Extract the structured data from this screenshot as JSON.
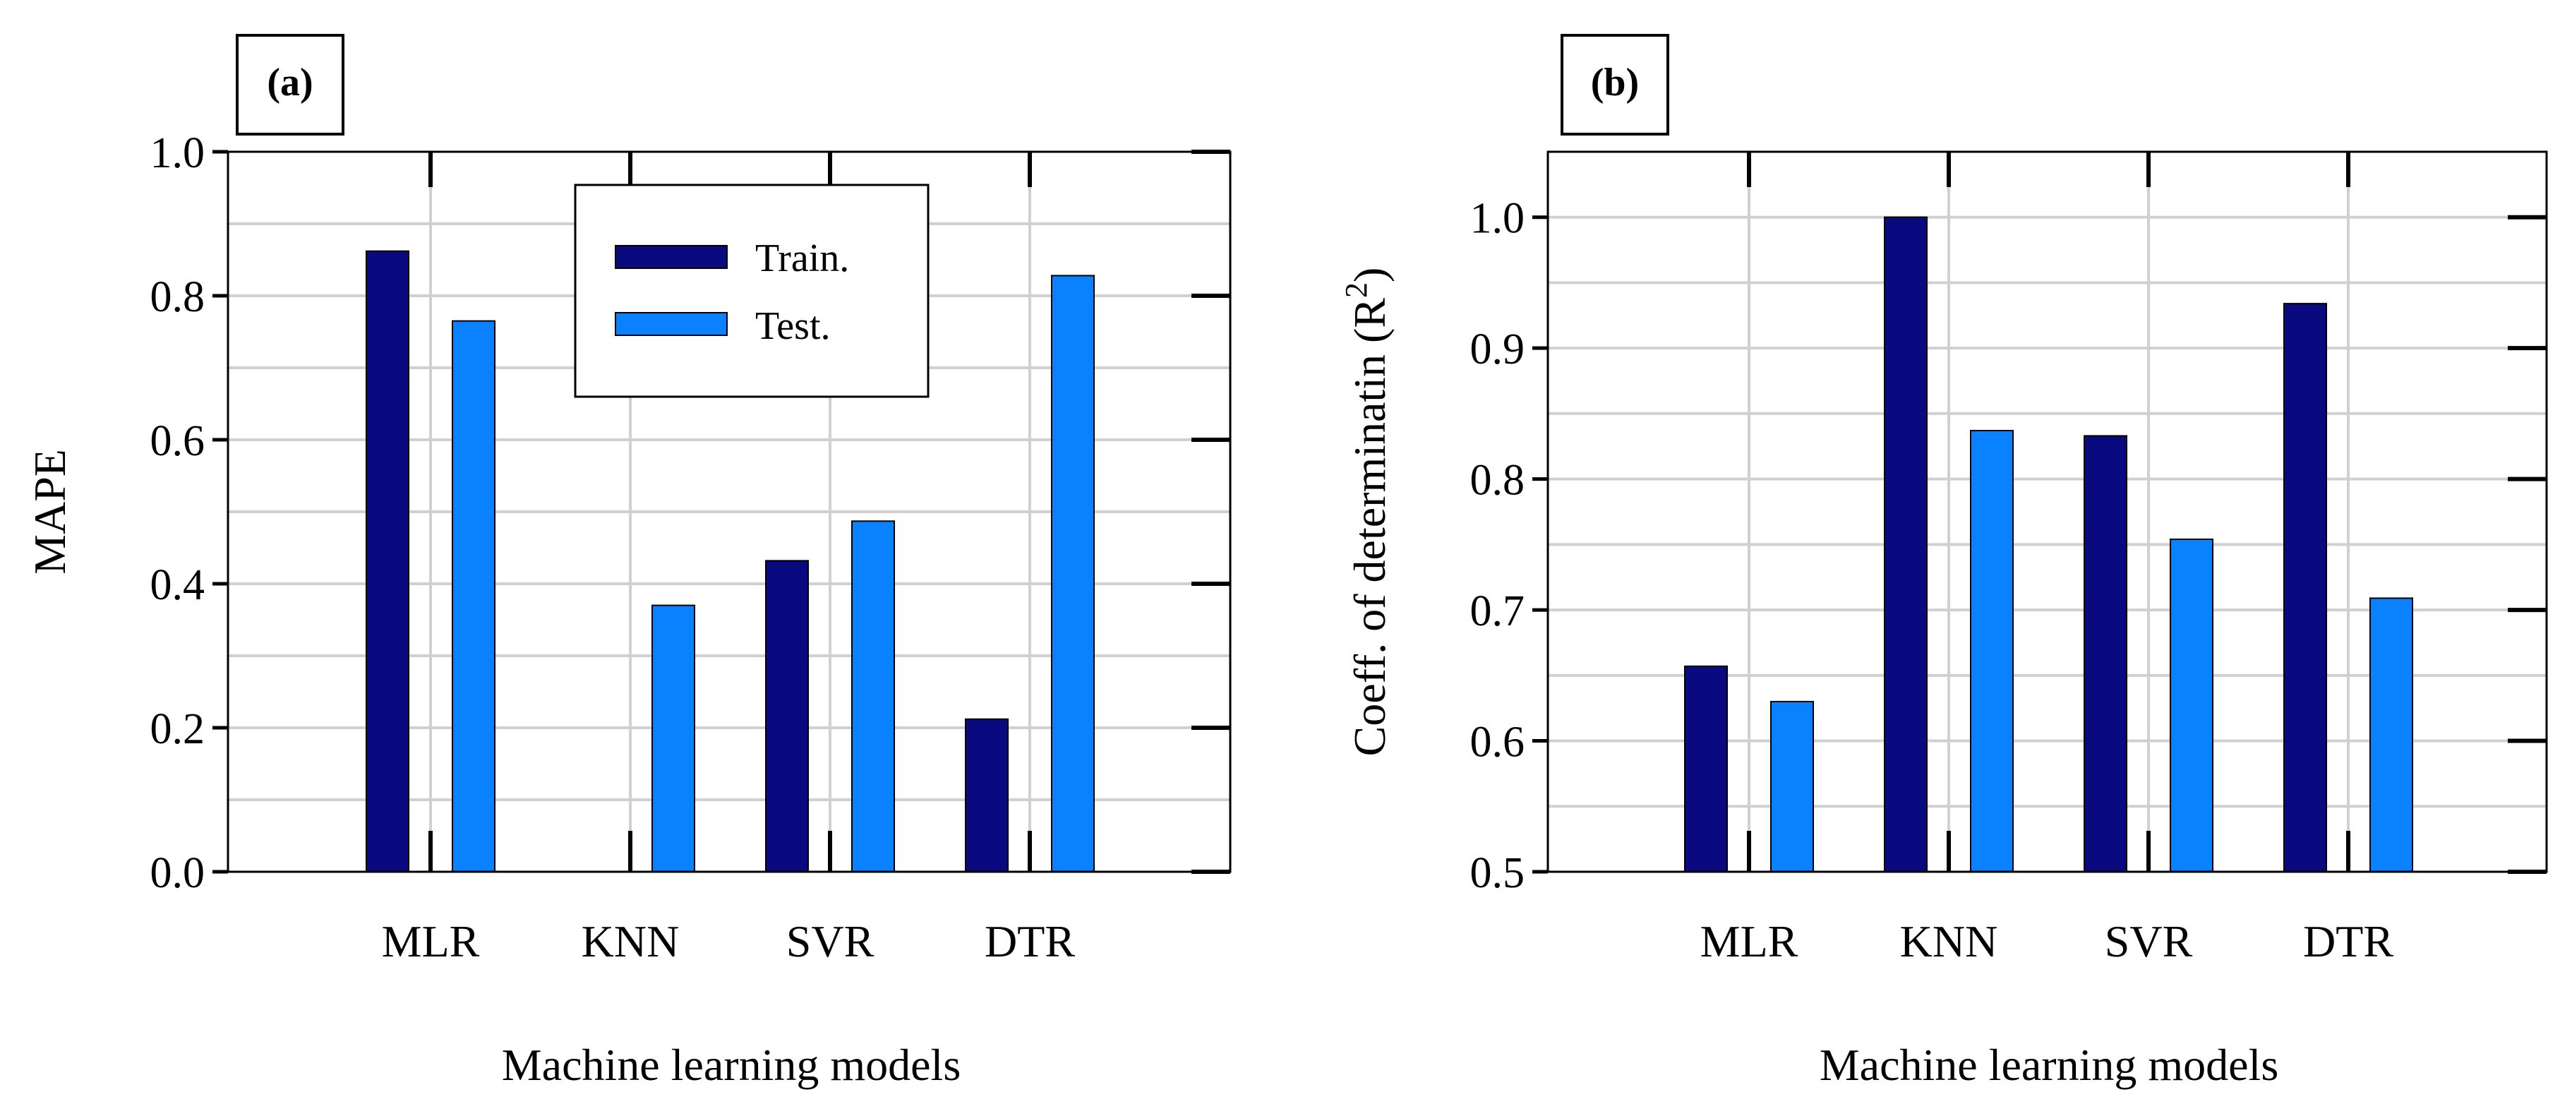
{
  "chart_data": [
    {
      "panel_label": "(a)",
      "type": "bar",
      "categories": [
        "MLR",
        "KNN",
        "SVR",
        "DTR"
      ],
      "series": [
        {
          "name": "Train.",
          "color": "#0a0a80",
          "values": [
            0.862,
            0.0,
            0.432,
            0.212
          ]
        },
        {
          "name": "Test.",
          "color": "#0a82ff",
          "values": [
            0.765,
            0.37,
            0.487,
            0.828
          ]
        }
      ],
      "xlabel": "Machine learning models",
      "ylabel": "MAPE",
      "ylim": [
        0.0,
        1.0
      ],
      "yticks": [
        "0.0",
        "0.2",
        "0.4",
        "0.6",
        "0.8",
        "1.0"
      ],
      "grid": true,
      "legend": {
        "placement": "top-center",
        "entries": [
          "Train.",
          "Test."
        ]
      }
    },
    {
      "panel_label": "(b)",
      "type": "bar",
      "categories": [
        "MLR",
        "KNN",
        "SVR",
        "DTR"
      ],
      "series": [
        {
          "name": "Train.",
          "color": "#0a0a80",
          "values": [
            0.657,
            1.0,
            0.833,
            0.934
          ]
        },
        {
          "name": "Test.",
          "color": "#0a82ff",
          "values": [
            0.63,
            0.837,
            0.754,
            0.709
          ]
        }
      ],
      "xlabel": "Machine learning models",
      "ylabel": "Coeff. of determinatin (R",
      "ylabel_sup": "2",
      "ylabel_close": ")",
      "ylim": [
        0.5,
        1.05
      ],
      "yticks": [
        "0.5",
        "0.6",
        "0.7",
        "0.8",
        "0.9",
        "1.0"
      ],
      "grid": true
    }
  ]
}
